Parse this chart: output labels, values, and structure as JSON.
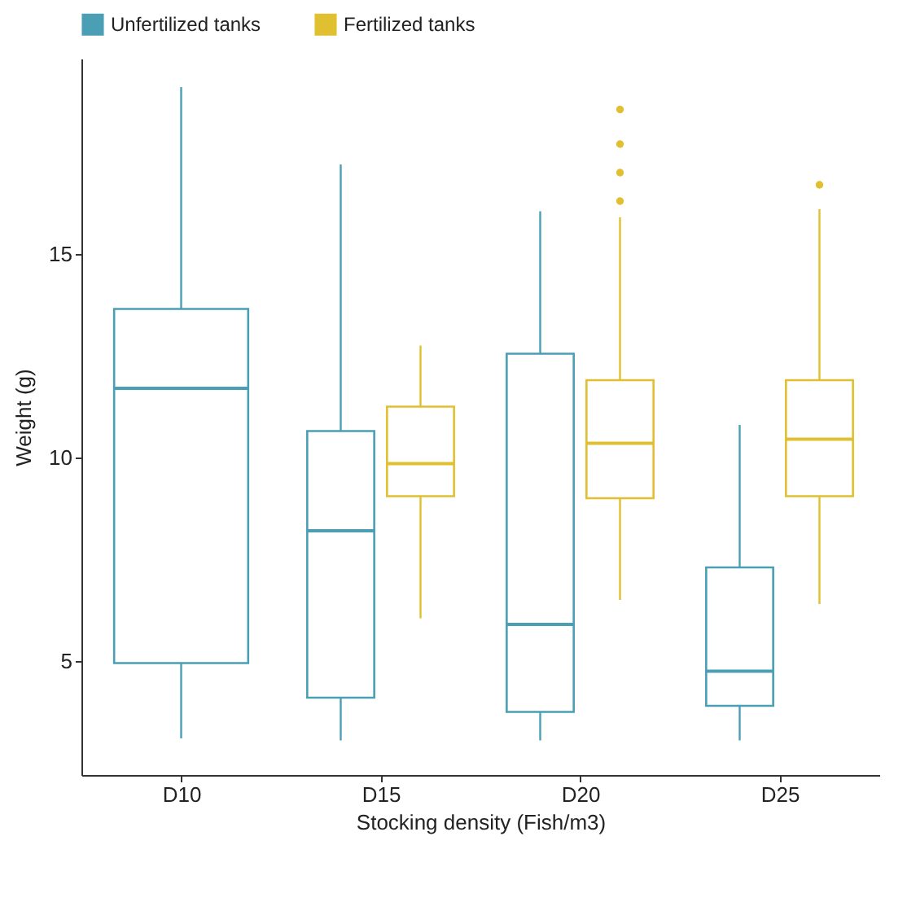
{
  "chart_data": {
    "type": "box",
    "xlabel": "Stocking density (Fish/m3)",
    "ylabel": "Weight (g)",
    "categories": [
      "D10",
      "D15",
      "D20",
      "D25"
    ],
    "series": [
      {
        "name": "Unfertilized tanks",
        "color": "#4a9fb5",
        "boxes": [
          {
            "low": 3.1,
            "q1": 4.95,
            "median": 11.7,
            "q3": 13.65,
            "high": 19.1
          },
          {
            "low": 3.05,
            "q1": 4.1,
            "median": 8.2,
            "q3": 10.65,
            "high": 17.2
          },
          {
            "low": 3.05,
            "q1": 3.75,
            "median": 5.9,
            "q3": 12.55,
            "high": 16.05
          },
          {
            "low": 3.05,
            "q1": 3.9,
            "median": 4.75,
            "q3": 7.3,
            "high": 10.8
          }
        ]
      },
      {
        "name": "Fertilized tanks",
        "color": "#e0c030",
        "boxes": [
          null,
          {
            "low": 6.05,
            "q1": 9.05,
            "median": 9.85,
            "q3": 11.25,
            "high": 12.75
          },
          {
            "low": 6.5,
            "q1": 9.0,
            "median": 10.35,
            "q3": 11.9,
            "high": 15.9,
            "outliers": [
              16.3,
              17.0,
              17.7,
              18.55
            ]
          },
          {
            "low": 6.4,
            "q1": 9.05,
            "median": 10.45,
            "q3": 11.9,
            "high": 16.1,
            "outliers": [
              16.7
            ]
          }
        ]
      }
    ],
    "ylim": [
      2.2,
      19.8
    ],
    "yticks": [
      5,
      10,
      15
    ],
    "grid": false,
    "legend": "top"
  }
}
